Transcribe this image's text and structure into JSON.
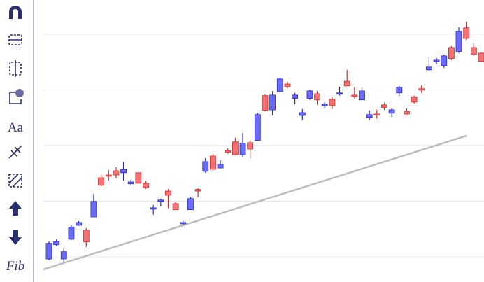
{
  "toolbar": {
    "text_tool": "Aa",
    "fib_tool": "Fib"
  },
  "chart_data": {
    "type": "candlestick",
    "open": [
      -0.8,
      4.3,
      -0.8,
      6.3,
      11.3,
      9.6,
      14.3,
      28.4,
      29.4,
      30.9,
      30.2,
      26.2,
      30.2,
      26.4,
      17.1,
      19.9,
      23.6,
      19.1,
      11.8,
      16.9,
      24.2,
      30.7,
      36.2,
      31.9,
      38.2,
      41.3,
      36.7,
      41.0,
      41.8,
      57.9,
      52.8,
      59.4,
      62.1,
      56.9,
      50.8,
      56.9,
      58.6,
      54.3,
      56.6,
      58.4,
      63.1,
      58.1,
      56.4,
      50.1,
      51.3,
      54.6,
      51.6,
      58.9,
      52.3,
      57.4,
      60.4,
      67.2,
      70.2,
      68.7,
      75.2,
      73.7,
      82.3,
      75.2,
      73.2
    ],
    "high": [
      5.5,
      6.3,
      3.0,
      11.3,
      12.8,
      10.3,
      22.6,
      29.4,
      31.2,
      32.2,
      34.0,
      27.7,
      30.2,
      27.2,
      18.6,
      20.9,
      24.4,
      19.6,
      13.1,
      21.4,
      24.7,
      35.5,
      37.0,
      34.7,
      39.0,
      42.8,
      44.5,
      41.8,
      51.6,
      58.4,
      59.6,
      64.2,
      62.9,
      58.9,
      53.1,
      60.1,
      59.6,
      55.6,
      57.4,
      61.1,
      67.2,
      60.9,
      60.9,
      52.6,
      52.8,
      55.3,
      53.3,
      61.4,
      53.3,
      57.9,
      61.6,
      71.7,
      71.5,
      72.7,
      75.7,
      82.5,
      84.5,
      77.0,
      73.5
    ],
    "low": [
      -1.3,
      3.8,
      -2.0,
      6.0,
      11.1,
      3.5,
      14.3,
      25.4,
      27.4,
      28.2,
      27.4,
      25.7,
      26.4,
      24.4,
      15.1,
      18.1,
      17.4,
      16.9,
      11.6,
      16.9,
      21.4,
      30.2,
      31.4,
      31.9,
      37.0,
      36.5,
      36.0,
      35.2,
      41.8,
      52.3,
      50.8,
      59.1,
      60.6,
      54.8,
      49.1,
      56.4,
      54.6,
      53.3,
      53.1,
      57.9,
      61.4,
      56.9,
      56.4,
      49.1,
      49.6,
      52.8,
      50.3,
      57.9,
      51.1,
      55.1,
      58.9,
      66.9,
      69.2,
      67.9,
      70.7,
      73.2,
      78.0,
      72.2,
      70.2
    ],
    "close": [
      4.8,
      5.5,
      1.8,
      10.6,
      12.3,
      5.3,
      19.9,
      25.7,
      28.9,
      29.4,
      31.4,
      26.9,
      26.4,
      24.9,
      17.6,
      20.4,
      22.1,
      16.9,
      12.3,
      20.9,
      23.6,
      34.2,
      31.4,
      33.2,
      37.5,
      36.7,
      40.8,
      38.7,
      51.1,
      52.6,
      58.1,
      63.9,
      61.1,
      58.1,
      51.8,
      59.6,
      56.4,
      54.8,
      54.3,
      58.9,
      61.4,
      57.6,
      59.6,
      51.1,
      51.1,
      53.6,
      52.8,
      60.9,
      51.3,
      55.6,
      59.9,
      68.2,
      70.7,
      72.2,
      71.2,
      81.0,
      78.5,
      72.7,
      70.2
    ],
    "up_color": "#6b6bf2",
    "down_color": "#f27373",
    "ylim": [
      -9.1,
      92.3
    ],
    "yticks": [
      0,
      20,
      40,
      60,
      80
    ],
    "grid": true
  }
}
